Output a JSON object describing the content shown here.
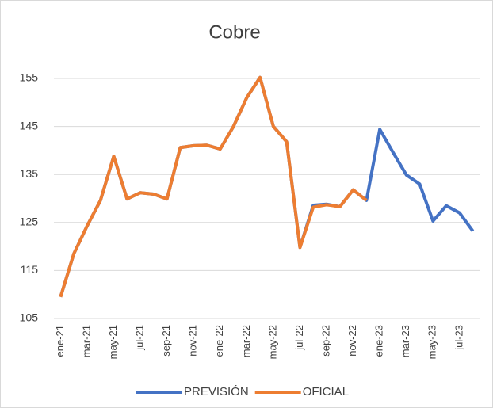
{
  "chart_data": {
    "type": "line",
    "title": "Cobre",
    "categories": [
      "ene-21",
      null,
      "mar-21",
      null,
      "may-21",
      null,
      "jul-21",
      null,
      "sep-21",
      null,
      "nov-21",
      null,
      "ene-22",
      null,
      "mar-22",
      null,
      "may-22",
      null,
      "jul-22",
      null,
      "sep-22",
      null,
      "nov-22",
      null,
      "ene-23",
      null,
      "mar-23",
      null,
      "may-23",
      null,
      "jul-23",
      null
    ],
    "series": [
      {
        "name": "PREVISIÓN",
        "color": "#4472c4",
        "values": [
          109.5,
          118.5,
          124.3,
          129.6,
          138.8,
          129.9,
          131.2,
          130.9,
          129.9,
          140.6,
          141.0,
          141.1,
          140.3,
          145.0,
          151.0,
          155.2,
          145.0,
          141.8,
          119.8,
          128.6,
          128.8,
          128.3,
          131.8,
          129.6,
          144.4,
          139.6,
          134.9,
          133.0,
          125.3,
          128.5,
          127.0,
          123.2
        ]
      },
      {
        "name": "OFICIAL",
        "color": "#ed7d31",
        "values": [
          109.5,
          118.5,
          124.3,
          129.6,
          138.8,
          129.9,
          131.2,
          130.9,
          129.9,
          140.6,
          141.0,
          141.1,
          140.3,
          145.0,
          151.0,
          155.2,
          145.0,
          141.8,
          119.8,
          128.2,
          128.7,
          128.3,
          131.8,
          129.6,
          null,
          null,
          null,
          null,
          null,
          null,
          null,
          null
        ]
      }
    ],
    "ylim": [
      105,
      155
    ],
    "yticks": [
      105,
      115,
      125,
      135,
      145,
      155
    ],
    "grid": true,
    "legend": "bottom"
  }
}
